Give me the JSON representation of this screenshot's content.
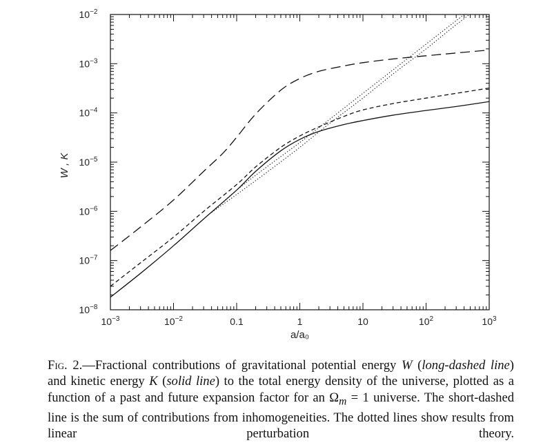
{
  "chart_data": {
    "type": "line",
    "x_scale": "log",
    "y_scale": "log",
    "xlim": [
      0.001,
      1000
    ],
    "ylim": [
      1e-08,
      0.01
    ],
    "xlabel": "a/a₀",
    "ylabel": "W , K",
    "x_ticks": [
      {
        "value": 0.001,
        "base": "10",
        "exp": "−3"
      },
      {
        "value": 0.01,
        "base": "10",
        "exp": "−2"
      },
      {
        "value": 0.1,
        "base": "0.1",
        "exp": ""
      },
      {
        "value": 1,
        "base": "1",
        "exp": ""
      },
      {
        "value": 10,
        "base": "10",
        "exp": ""
      },
      {
        "value": 100,
        "base": "10",
        "exp": "2"
      },
      {
        "value": 1000,
        "base": "10",
        "exp": "3"
      }
    ],
    "y_ticks": [
      {
        "value": 1e-08,
        "base": "10",
        "exp": "−8"
      },
      {
        "value": 1e-07,
        "base": "10",
        "exp": "−7"
      },
      {
        "value": 1e-06,
        "base": "10",
        "exp": "−6"
      },
      {
        "value": 1e-05,
        "base": "10",
        "exp": "−5"
      },
      {
        "value": 0.0001,
        "base": "10",
        "exp": "−4"
      },
      {
        "value": 0.001,
        "base": "10",
        "exp": "−3"
      },
      {
        "value": 0.01,
        "base": "10",
        "exp": "−2"
      }
    ],
    "series": [
      {
        "style": "long-dashed",
        "x": [
          0.001,
          0.003,
          0.01,
          0.03,
          0.06,
          0.1,
          0.2,
          0.5,
          1,
          2,
          5,
          10,
          30,
          100,
          300,
          1000
        ],
        "y": [
          1.6e-07,
          4.8e-07,
          1.7e-06,
          6.5e-06,
          1.5e-05,
          3.2e-05,
          9.5e-05,
          0.00029,
          0.0005,
          0.0007,
          0.0009,
          0.00105,
          0.00125,
          0.00145,
          0.00165,
          0.0019
        ]
      },
      {
        "style": "solid",
        "x": [
          0.001,
          0.003,
          0.01,
          0.03,
          0.1,
          0.2,
          0.5,
          1,
          2,
          5,
          10,
          30,
          100,
          300,
          1000
        ],
        "y": [
          1.8e-08,
          5.5e-08,
          2e-07,
          7e-07,
          2.7e-06,
          6.5e-06,
          1.7e-05,
          2.9e-05,
          4.2e-05,
          5.8e-05,
          7e-05,
          9e-05,
          0.000112,
          0.000135,
          0.00017
        ]
      },
      {
        "style": "short-dashed",
        "x": [
          0.001,
          0.003,
          0.01,
          0.03,
          0.1,
          0.2,
          0.5,
          1,
          2,
          5,
          10,
          30,
          100,
          300,
          1000
        ],
        "y": [
          3e-08,
          9e-08,
          3e-07,
          1e-06,
          3.5e-06,
          8e-06,
          2e-05,
          3.4e-05,
          5.2e-05,
          8.5e-05,
          0.000115,
          0.000155,
          0.0002,
          0.00025,
          0.00032
        ]
      },
      {
        "style": "dotted",
        "x": [
          0.04,
          0.1,
          0.3,
          1,
          3,
          10,
          30,
          100,
          300,
          1000
        ],
        "y": [
          9.5e-07,
          2.7e-06,
          8e-06,
          2.5e-05,
          7.5e-05,
          0.00025,
          0.00075,
          0.0025,
          0.0075,
          0.025
        ]
      },
      {
        "style": "dotted",
        "x": [
          0.04,
          0.1,
          0.3,
          1,
          3,
          10,
          30,
          100,
          300,
          1000
        ],
        "y": [
          9.5e-07,
          2.2e-06,
          6.2e-06,
          2e-05,
          6.2e-05,
          0.0002,
          0.00062,
          0.002,
          0.0062,
          0.02
        ]
      }
    ]
  },
  "caption": {
    "fig_label": "Fig. 2.",
    "text_1": "—Fractional contributions of gravitational potential energy ",
    "var_w": "W",
    "text_2": " (",
    "style_w": "long-dashed line",
    "text_3": ") and kinetic energy ",
    "var_k": "K",
    "text_4": " (",
    "style_k": "solid line",
    "text_5": ") to the total energy density of the universe, plotted as a function of a past and future expansion factor for an ",
    "omega": "Ω",
    "omega_sub": "m",
    "text_6": " = 1 universe. The short-dashed line is the sum of contributions from",
    "text_7": "inhomogeneities. The dotted lines show results from linear perturbation theory."
  }
}
